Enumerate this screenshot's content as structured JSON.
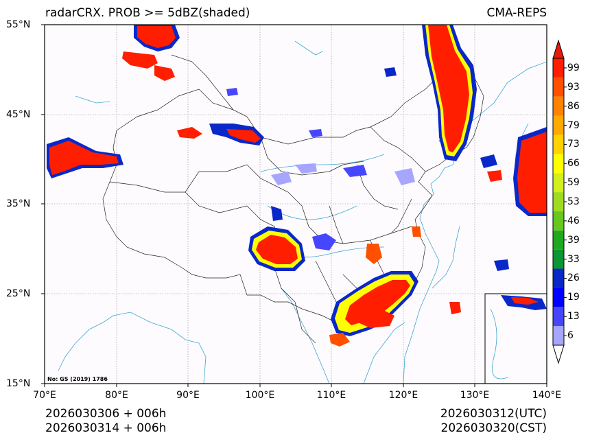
{
  "title": {
    "left": "radarCRX. PROB >= 5dBZ(shaded)",
    "right": "CMA-REPS"
  },
  "footer": {
    "left_line1": "2026030306  +  006h",
    "left_line2": "2026030314  +  006h",
    "right_line1": "2026030312(UTC)",
    "right_line2": "2026030320(CST)"
  },
  "map_notice": "No: GS (2019) 1786",
  "axes": {
    "lat_ticks": [
      "55°N",
      "45°N",
      "35°N",
      "25°N",
      "15°N"
    ],
    "lon_ticks": [
      "70°E",
      "80°E",
      "90°E",
      "100°E",
      "110°E",
      "120°E",
      "130°E",
      "140°E"
    ],
    "lat_range": [
      15,
      55
    ],
    "lon_range": [
      70,
      140
    ]
  },
  "colorbar": {
    "levels": [
      "6",
      "13",
      "19",
      "26",
      "33",
      "39",
      "46",
      "53",
      "59",
      "66",
      "73",
      "79",
      "86",
      "93",
      "99"
    ],
    "colors": [
      "#a6a6ff",
      "#4646ff",
      "#0000ff",
      "#0a28c8",
      "#0a9632",
      "#1eaa1e",
      "#64c81e",
      "#a0dc1e",
      "#d2f01e",
      "#ffff00",
      "#ffd200",
      "#ffaa00",
      "#ff8200",
      "#ff5000",
      "#ff1e00"
    ],
    "under_color": "#ffffff",
    "over_color": "#e41a0a"
  },
  "colors": {
    "background": "#fdfbfd",
    "grid": "#888888",
    "coast": "#3aa6d6",
    "border": "#222222"
  }
}
